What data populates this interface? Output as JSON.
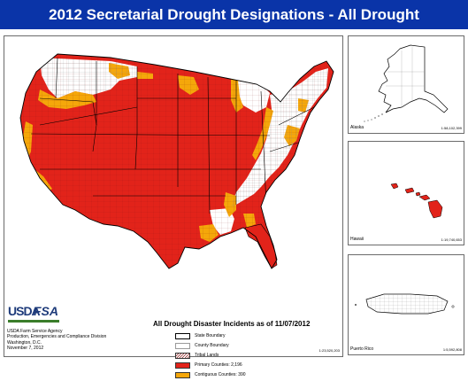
{
  "title": "2012 Secretarial Drought Designations - All Drought",
  "colors": {
    "primary": "#e2231a",
    "contiguous": "#f5a70a",
    "state_boundary": "#000000",
    "background": "#ffffff",
    "title_bar": "#0a34a8"
  },
  "legend": {
    "title": "All Drought Disaster Incidents as of 11/07/2012",
    "items": [
      {
        "label": "State Boundary",
        "swatch": "state-boundary"
      },
      {
        "label": "County Boundary",
        "swatch": "county-boundary"
      },
      {
        "label": "Tribal Lands",
        "swatch": "tribal-lands"
      },
      {
        "label": "Primary Counties: 2,196",
        "swatch": "primary"
      },
      {
        "label": "Contiguous Counties: 390",
        "swatch": "contiguous"
      }
    ]
  },
  "main_map": {
    "scale": "1:23,520,203"
  },
  "insets": [
    {
      "name": "Alaska",
      "scale": "1:58,102,399"
    },
    {
      "name": "Hawaii",
      "scale": "1:19,740,653"
    },
    {
      "name": "Puerto Rico",
      "scale": "1:5,592,808"
    }
  ],
  "logo": {
    "usda": "USDA",
    "fsa": "FSA"
  },
  "agency": {
    "line1": "USDA Farm Service Agency",
    "line2": "Production, Emergencies and Compliance Division",
    "line3": "Washington, D.C.",
    "line4": "November 7, 2012"
  }
}
